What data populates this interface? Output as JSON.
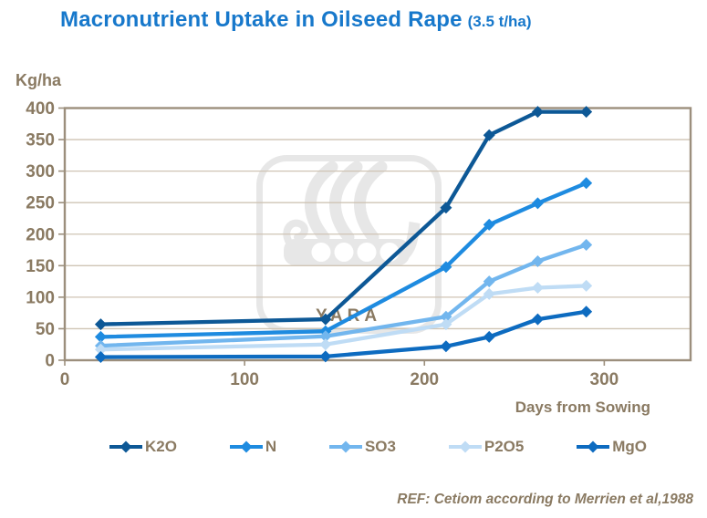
{
  "title": {
    "main": "Macronutrient Uptake in Oilseed Rape",
    "suffix": "(3.5 t/ha)"
  },
  "footer": "REF: Cetiom according to Merrien et al,1988",
  "watermark_text": "YARA",
  "colors": {
    "title": "#1778CB",
    "text_brown": "#8A7A62",
    "axis_frame": "#9C8F7D",
    "gridline": "#CFC4B4",
    "watermark": "#E7E7E7"
  },
  "chart_data": {
    "type": "line",
    "title": "Macronutrient Uptake in Oilseed Rape (3.5 t/ha)",
    "xlabel": "Days from Sowing",
    "ylabel": "Kg/ha",
    "xlim": [
      0,
      348
    ],
    "ylim": [
      0,
      400
    ],
    "x_ticks": [
      0,
      100,
      200,
      300
    ],
    "y_ticks": [
      0,
      50,
      100,
      150,
      200,
      250,
      300,
      350,
      400
    ],
    "grid": true,
    "marker": "diamond",
    "legend_position": "bottom",
    "x": [
      20,
      145,
      212,
      236,
      263,
      290
    ],
    "series": [
      {
        "name": "K2O",
        "color": "#0D5896",
        "values": [
          57,
          65,
          242,
          357,
          394,
          394
        ]
      },
      {
        "name": "N",
        "color": "#1E8BE0",
        "values": [
          37,
          46,
          148,
          215,
          249,
          281
        ]
      },
      {
        "name": "SO3",
        "color": "#72B6EE",
        "values": [
          23,
          38,
          69,
          125,
          157,
          183
        ]
      },
      {
        "name": "P2O5",
        "color": "#BFDCF5",
        "values": [
          17,
          25,
          57,
          105,
          115,
          118
        ]
      },
      {
        "name": "MgO",
        "color": "#0D6BC0",
        "values": [
          5,
          6,
          22,
          37,
          65,
          77
        ]
      }
    ]
  }
}
